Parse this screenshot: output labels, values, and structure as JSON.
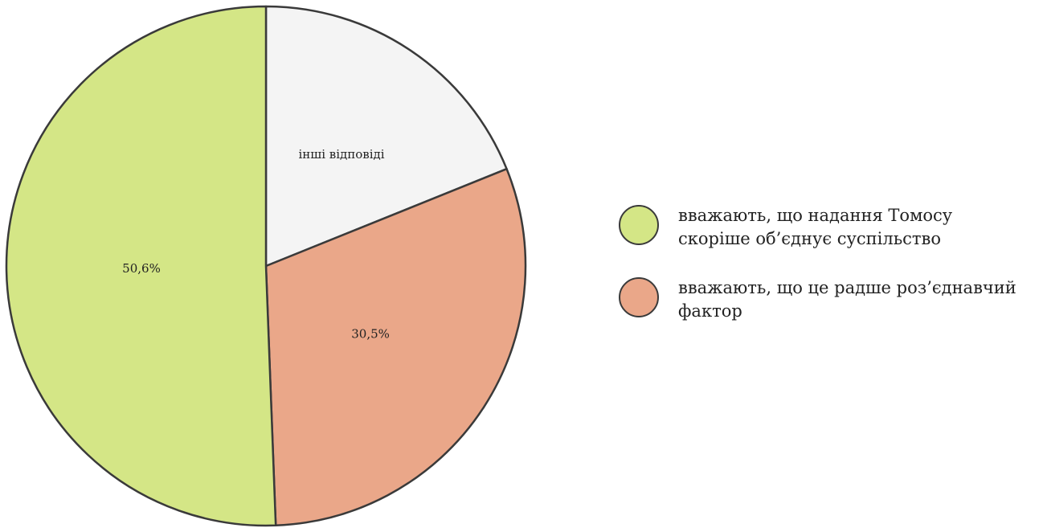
{
  "chart_data": {
    "type": "pie",
    "slices": [
      {
        "label": "50,6%",
        "value": 50.6,
        "color": "#d4e686",
        "legend": "вважають, що надання Томосу скоріше об’єднує суспільство"
      },
      {
        "label": "30,5%",
        "value": 30.5,
        "color": "#eaa789",
        "legend": "вважають, що це радше роз’єднавчий фактор"
      },
      {
        "label": "інші відповіді",
        "value": 18.9,
        "color": "#f4f4f4"
      }
    ],
    "start_angle": "12 o'clock",
    "direction": "clockwise from the top, starting with the light slice",
    "stroke_color": "#3a3a3a",
    "legend_position": "right"
  }
}
